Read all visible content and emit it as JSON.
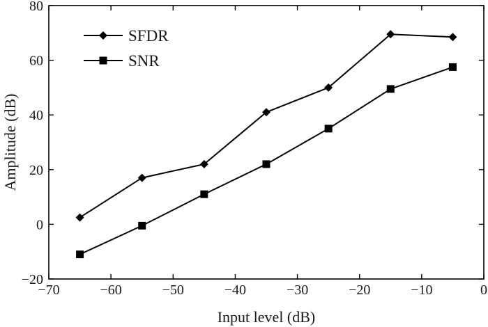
{
  "chart_data": {
    "type": "line",
    "title": "",
    "xlabel": "Input level (dB)",
    "ylabel": "Amplitude (dB)",
    "xlim": [
      -70,
      0
    ],
    "ylim": [
      -20,
      80
    ],
    "xticks": [
      -70,
      -60,
      -50,
      -40,
      -30,
      -20,
      -10,
      0
    ],
    "yticks": [
      -20,
      0,
      20,
      40,
      60,
      80
    ],
    "grid": false,
    "legend_position": "top-left",
    "series": [
      {
        "name": "SFDR",
        "marker": "diamond",
        "color": "#000000",
        "x": [
          -65,
          -55,
          -45,
          -35,
          -25,
          -15,
          -5
        ],
        "y": [
          2.5,
          17,
          22,
          41,
          50,
          69.5,
          68.5
        ]
      },
      {
        "name": "SNR",
        "marker": "square",
        "color": "#000000",
        "x": [
          -65,
          -55,
          -45,
          -35,
          -25,
          -15,
          -5
        ],
        "y": [
          -11,
          -0.5,
          11,
          22,
          35,
          49.5,
          57.5
        ]
      }
    ]
  }
}
